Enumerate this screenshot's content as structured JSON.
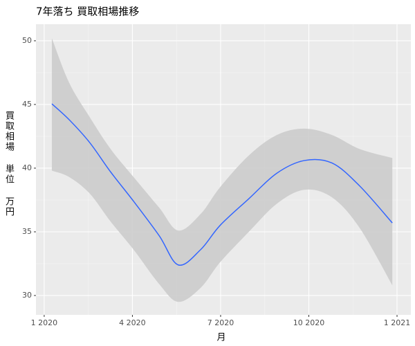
{
  "chart_data": {
    "type": "line",
    "title": "7年落ち 買取相場推移",
    "x_label": "月",
    "y_label": "買取相場 単位 万円",
    "x": [
      0.26,
      0.85,
      1.55,
      2.26,
      3.04,
      3.91,
      4.56,
      5.32,
      5.98,
      6.96,
      7.91,
      8.85,
      9.79,
      10.73,
      11.84
    ],
    "series": [
      {
        "color": "#3366ff",
        "band_color": "#cccccc",
        "values": [
          45.05,
          43.8,
          42.0,
          39.7,
          37.4,
          34.7,
          32.4,
          33.6,
          35.5,
          37.6,
          39.6,
          40.6,
          40.4,
          38.6,
          35.7
        ],
        "lower": [
          39.8,
          39.3,
          38.0,
          35.8,
          33.6,
          30.9,
          29.5,
          30.6,
          32.6,
          35.0,
          37.2,
          38.3,
          37.7,
          35.3,
          30.8
        ],
        "upper": [
          50.2,
          46.7,
          44.0,
          41.5,
          39.3,
          36.9,
          35.1,
          36.4,
          38.5,
          41.0,
          42.6,
          43.1,
          42.6,
          41.5,
          40.8
        ]
      }
    ],
    "xlim": [
      -0.28,
      12.47
    ],
    "ylim": [
      28.48,
      51.3
    ],
    "xticks": [
      {
        "value": 0,
        "label": "1 2020"
      },
      {
        "value": 3,
        "label": "4 2020"
      },
      {
        "value": 6,
        "label": "7 2020"
      },
      {
        "value": 9,
        "label": "10 2020"
      },
      {
        "value": 12,
        "label": "1 2021"
      }
    ],
    "yticks": [
      30,
      35,
      40,
      45,
      50
    ],
    "grid": true,
    "panel_color": "#ebebeb"
  }
}
